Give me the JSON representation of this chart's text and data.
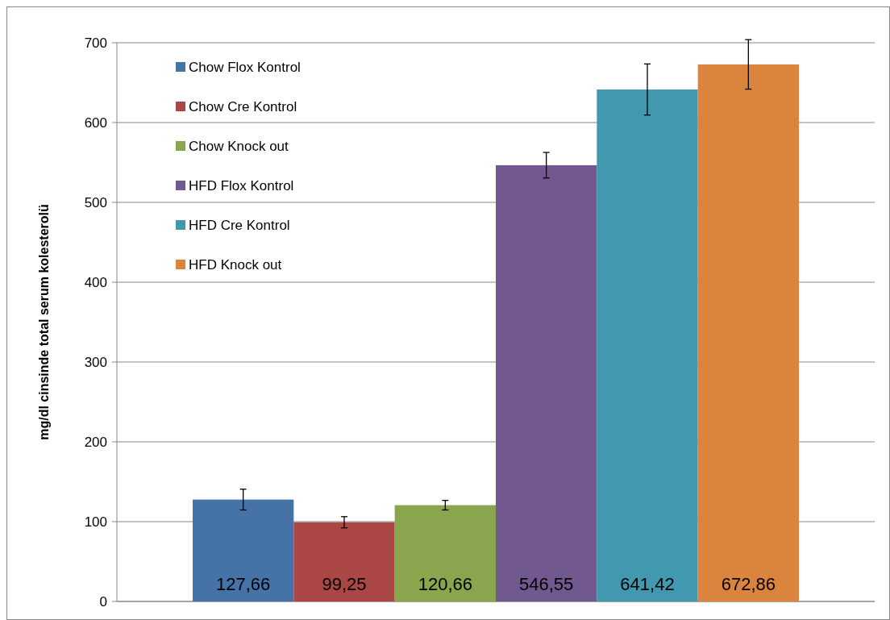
{
  "chart_data": {
    "type": "bar",
    "ylabel": "mg/dl cinsinde total serum kolesterolü",
    "categories": [
      null
    ],
    "ylim": [
      0,
      700
    ],
    "yticks": [
      0,
      100,
      200,
      300,
      400,
      500,
      600,
      700
    ],
    "grid": "y",
    "legend": "top left",
    "series": [
      {
        "name": "Chow Flox Kontrol",
        "color": "#4572a7",
        "values": [
          127.66
        ],
        "errors": [
          13
        ],
        "value_labels": [
          "127,66"
        ]
      },
      {
        "name": "Chow Cre Kontrol",
        "color": "#aa4643",
        "values": [
          99.25
        ],
        "errors": [
          7
        ],
        "value_labels": [
          "99,25"
        ]
      },
      {
        "name": "Chow Knock out",
        "color": "#89a54e",
        "values": [
          120.66
        ],
        "errors": [
          6
        ],
        "value_labels": [
          "120,66"
        ]
      },
      {
        "name": "HFD Flox Kontrol",
        "color": "#71588f",
        "values": [
          546.55
        ],
        "errors": [
          16
        ],
        "value_labels": [
          "546,55"
        ]
      },
      {
        "name": "HFD Cre Kontrol",
        "color": "#4198af",
        "values": [
          641.42
        ],
        "errors": [
          32
        ],
        "value_labels": [
          "641,42"
        ]
      },
      {
        "name": "HFD Knock out",
        "color": "#db843d",
        "values": [
          672.86
        ],
        "errors": [
          31
        ],
        "value_labels": [
          "672,86"
        ]
      }
    ]
  }
}
